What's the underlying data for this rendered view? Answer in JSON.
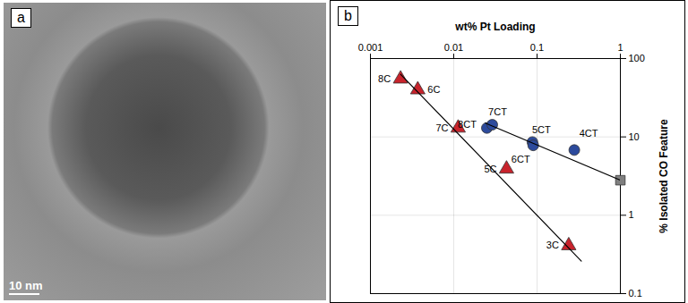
{
  "image_panel": {
    "panel_label": "a",
    "scale_bar_label": "10 nm"
  },
  "chart_data": {
    "type": "scatter",
    "panel_label": "b",
    "x_label": "wt% Pt Loading",
    "y_label": "% Isolated CO Feature",
    "log": true,
    "grid": true,
    "xlim": [
      0.001,
      1
    ],
    "xticks": [
      0.001,
      0.01,
      0.1,
      1
    ],
    "ylim": [
      0.1,
      100
    ],
    "yticks": [
      0.1,
      1,
      10,
      100
    ],
    "series": [
      {
        "color": "#c8232c",
        "marker": "triangle",
        "x": [
          0.0023,
          0.0037,
          0.0113,
          0.043,
          0.24
        ],
        "values": [
          55,
          40,
          13,
          3.9,
          0.41
        ],
        "labels": [
          "8C",
          "6C",
          "7C",
          "5C",
          "3C"
        ]
      },
      {
        "color": "#2c4a9c",
        "marker": "circle",
        "x": [
          0.025,
          0.029,
          0.088,
          0.09,
          0.28
        ],
        "values": [
          13,
          14.3,
          8.6,
          7.8,
          6.8
        ],
        "labels": [
          "8CT",
          "7CT",
          "5CT",
          "6CT",
          "4CT"
        ]
      },
      {
        "color": "#7f7f7f",
        "marker": "square",
        "x": [
          1
        ],
        "values": [
          2.8
        ]
      },
      {
        "type": "line",
        "color": "#000000",
        "x": [
          0.0023,
          0.34
        ],
        "values": [
          63,
          0.26
        ]
      },
      {
        "type": "line",
        "color": "#000000",
        "x": [
          0.024,
          1
        ],
        "values": [
          15,
          2.8
        ]
      }
    ]
  }
}
